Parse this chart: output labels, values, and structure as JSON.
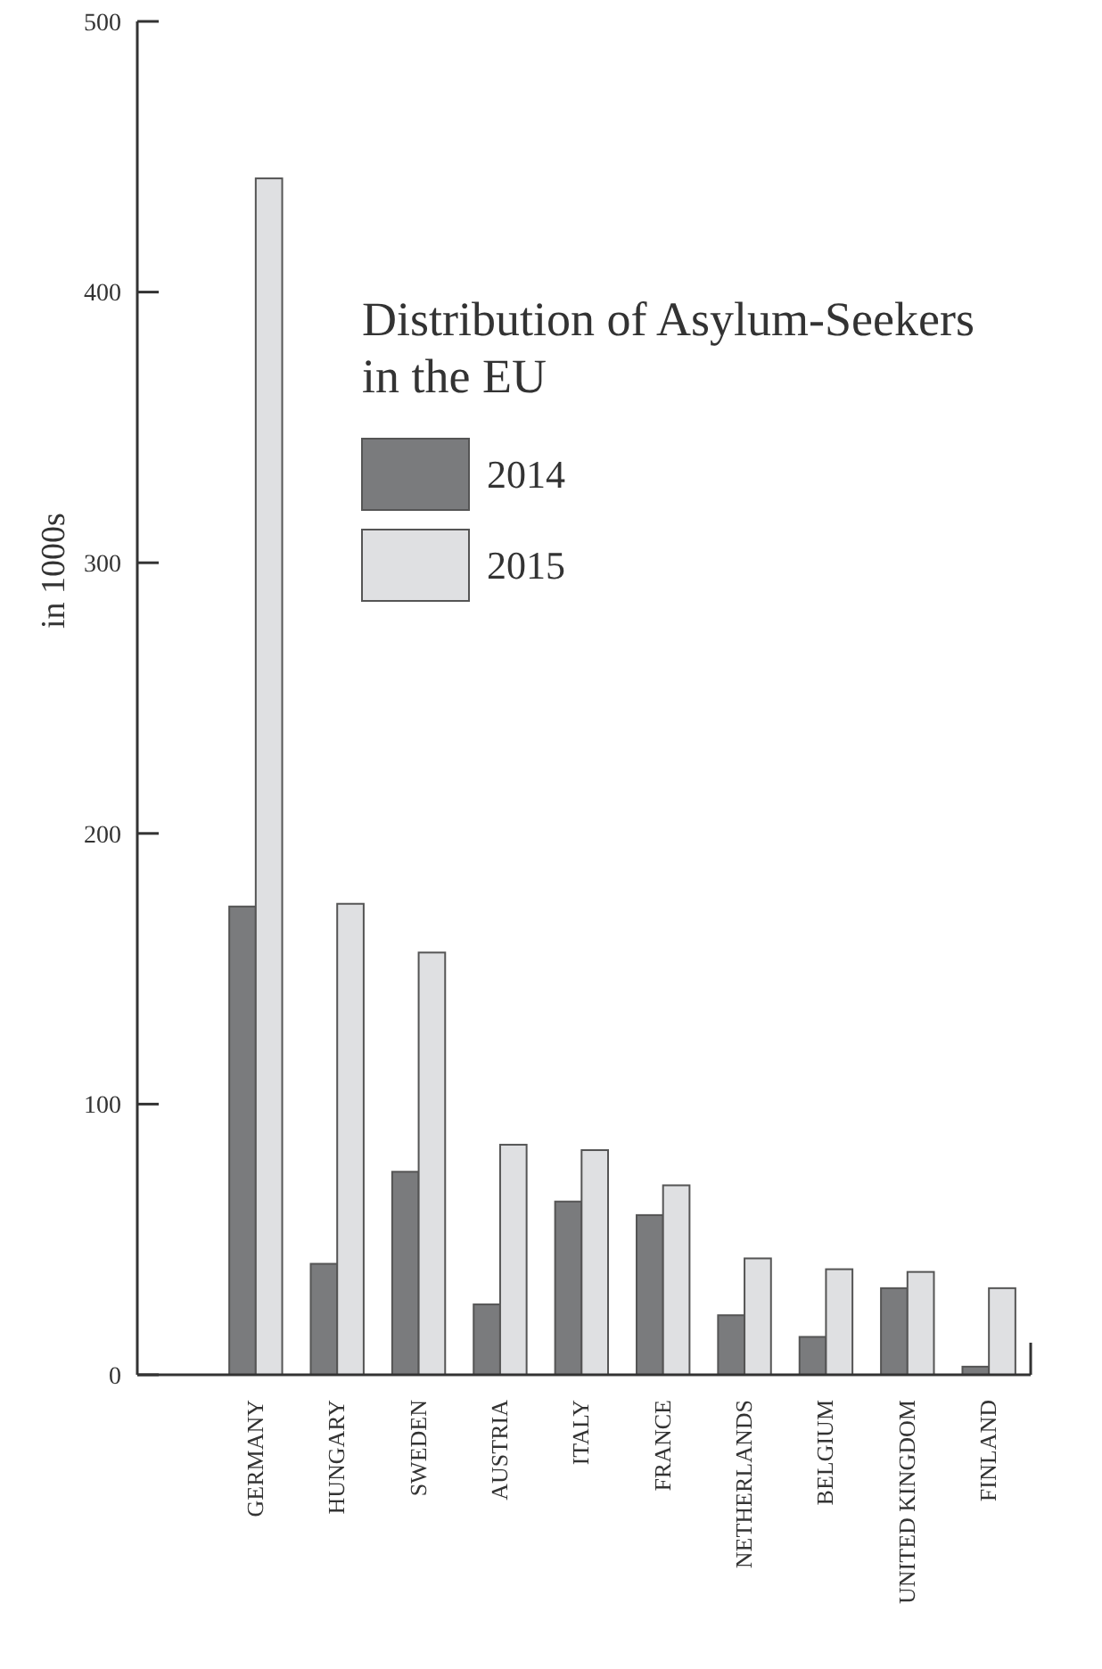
{
  "chart_data": {
    "type": "bar",
    "title": "Distribution of Asylum-Seekers in the EU",
    "ylabel": "in 1000s",
    "categories": [
      "GERMANY",
      "HUNGARY",
      "SWEDEN",
      "AUSTRIA",
      "ITALY",
      "FRANCE",
      "NETHERLANDS",
      "BELGIUM",
      "UNITED KINGDOM",
      "FINLAND"
    ],
    "series": [
      {
        "name": "2014",
        "color": "#7a7b7d",
        "values": [
          173,
          41,
          75,
          26,
          64,
          59,
          22,
          14,
          32,
          3
        ]
      },
      {
        "name": "2015",
        "color": "#dfe0e2",
        "values": [
          442,
          174,
          156,
          85,
          83,
          70,
          43,
          39,
          38,
          32
        ]
      }
    ],
    "ylim": [
      0,
      500
    ],
    "yticks": [
      0,
      100,
      200,
      300,
      400,
      500
    ],
    "grid": false,
    "legend": "top"
  }
}
